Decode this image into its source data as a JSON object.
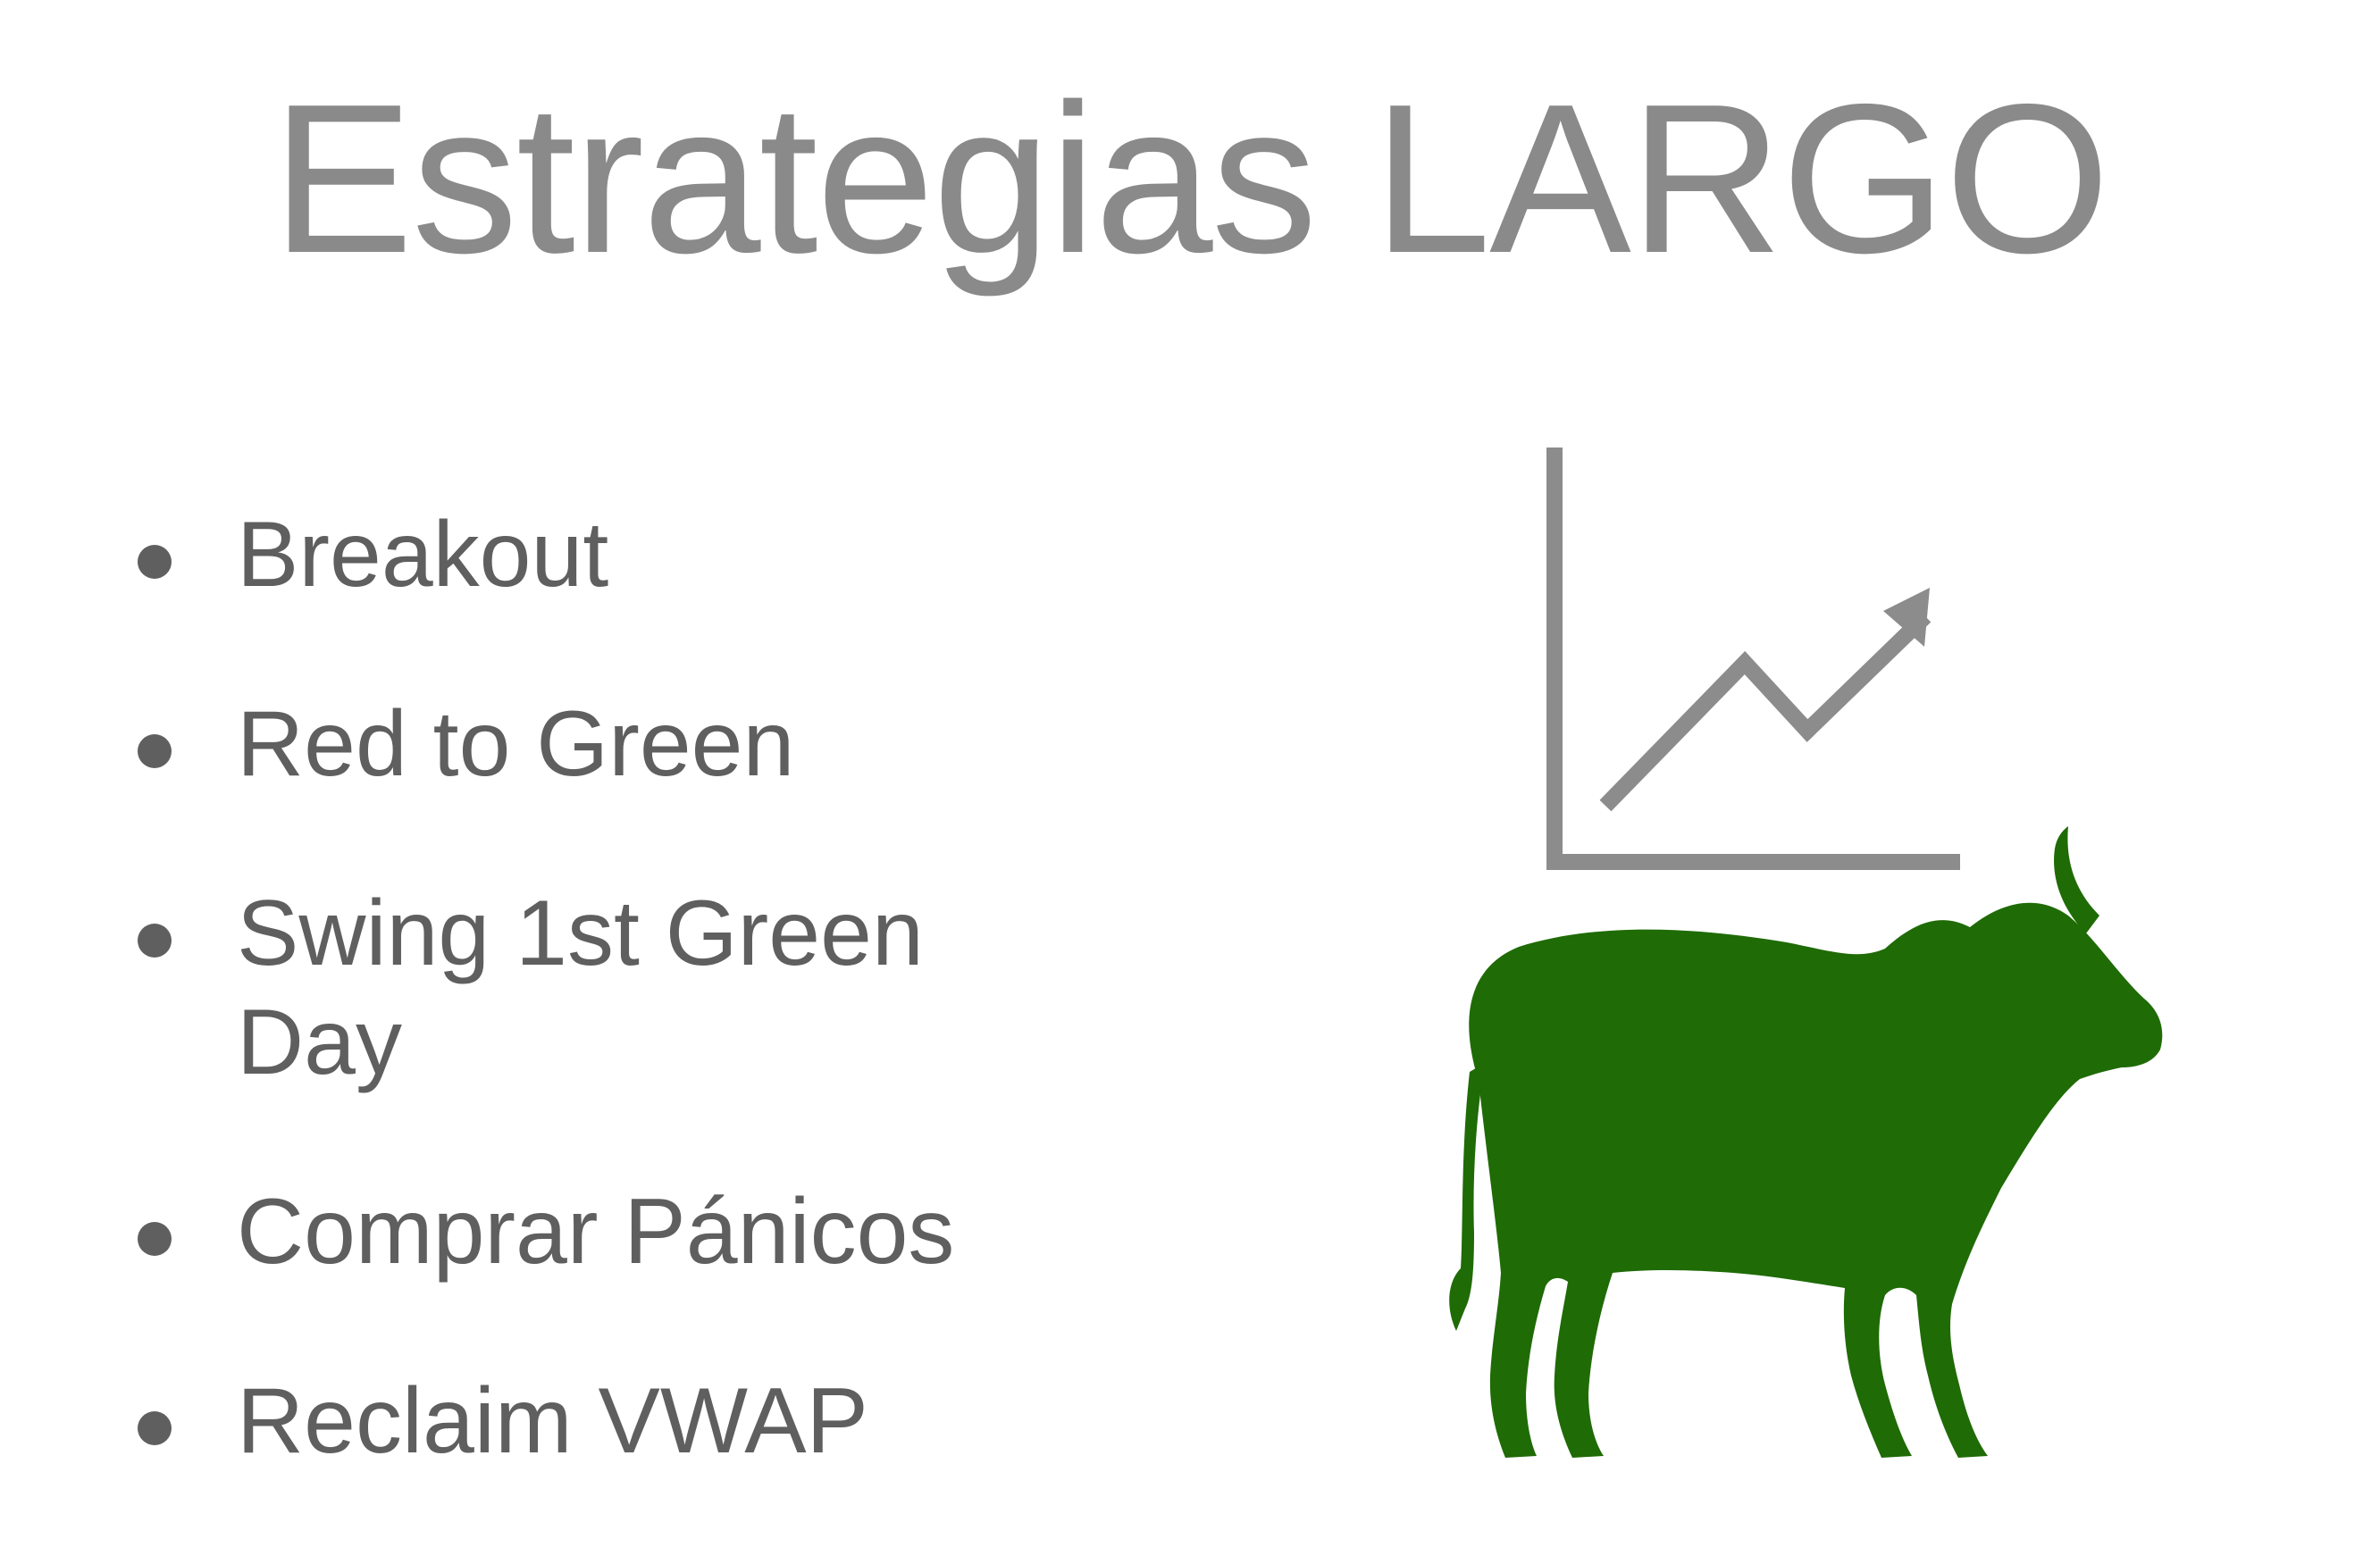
{
  "slide": {
    "title": "Estrategias LARGO",
    "bullets": [
      "Breakout",
      "Red to Green",
      "Swing 1st Green Day",
      "Comprar Pánicos",
      "Reclaim VWAP"
    ]
  },
  "graphic": {
    "chart_icon": "chart-up-icon",
    "bull_icon": "bull-icon",
    "chart_color": "#8c8c8c",
    "bull_color": "#1f6b06"
  }
}
